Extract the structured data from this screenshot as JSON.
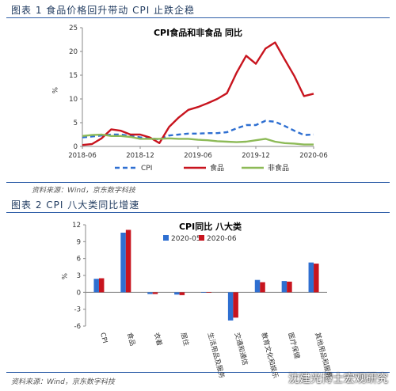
{
  "header": {
    "fig1_caption": "图表 1 食品价格回升带动 CPI 止跌企稳",
    "fig1_source": "资料来源：Wind，京东数字科技",
    "fig2_caption": "图表 2 CPI 八大类同比增速",
    "fig2_source": "资料来源：Wind，京东数字科技",
    "watermark": "沈建光博士宏观研究"
  },
  "colors": {
    "cpi": "#2e6fd1",
    "food": "#c8141e",
    "nonfood": "#8dba57",
    "s2020_05": "#2e6fd1",
    "s2020_06": "#c8141e",
    "rule": "#2f5fa8"
  },
  "chart_data": [
    {
      "type": "line",
      "title": "CPI食品和非食品 同比",
      "ylabel": "%",
      "ylim": [
        0,
        25
      ],
      "yticks": [
        0,
        5,
        10,
        15,
        20,
        25
      ],
      "xlim": [
        "2018-06",
        "2020-06"
      ],
      "xticks": [
        "2018-06",
        "2018-12",
        "2019-06",
        "2019-12",
        "2020-06"
      ],
      "x": [
        "2018-06",
        "2018-07",
        "2018-08",
        "2018-09",
        "2018-10",
        "2018-11",
        "2018-12",
        "2019-01",
        "2019-02",
        "2019-03",
        "2019-04",
        "2019-05",
        "2019-06",
        "2019-07",
        "2019-08",
        "2019-09",
        "2019-10",
        "2019-11",
        "2019-12",
        "2020-01",
        "2020-02",
        "2020-03",
        "2020-04",
        "2020-05",
        "2020-06"
      ],
      "legend_position": "bottom",
      "series": [
        {
          "name": "CPI",
          "style": "dashed",
          "values": [
            1.9,
            2.1,
            2.3,
            2.5,
            2.5,
            2.2,
            1.9,
            1.7,
            1.5,
            2.3,
            2.5,
            2.7,
            2.7,
            2.8,
            2.8,
            3.0,
            3.8,
            4.5,
            4.5,
            5.4,
            5.2,
            4.3,
            3.3,
            2.4,
            2.5
          ]
        },
        {
          "name": "食品",
          "style": "solid",
          "values": [
            0.3,
            0.5,
            1.7,
            3.6,
            3.3,
            2.5,
            2.5,
            1.9,
            0.7,
            4.1,
            6.1,
            7.7,
            8.3,
            9.1,
            10.0,
            11.2,
            15.5,
            19.1,
            17.4,
            20.6,
            21.9,
            18.3,
            14.8,
            10.6,
            11.1
          ]
        },
        {
          "name": "非食品",
          "style": "solid",
          "values": [
            2.2,
            2.4,
            2.5,
            2.2,
            2.2,
            2.0,
            1.6,
            1.6,
            1.6,
            1.7,
            1.6,
            1.6,
            1.4,
            1.3,
            1.1,
            1.0,
            0.9,
            1.0,
            1.3,
            1.6,
            1.0,
            0.7,
            0.6,
            0.4,
            0.4
          ]
        }
      ]
    },
    {
      "type": "bar",
      "title": "CPI同比 八大类",
      "ylabel": "%",
      "ylim": [
        -6,
        12
      ],
      "yticks": [
        -6,
        -3,
        0,
        3,
        6,
        9,
        12
      ],
      "categories": [
        "CPI",
        "食品",
        "衣着",
        "居住",
        "生活用品及服务",
        "交通和通信",
        "教育文化和娱乐",
        "医疗保健",
        "其他用品和服务"
      ],
      "legend_position": "top",
      "series": [
        {
          "name": "2020-05",
          "values": [
            2.4,
            10.6,
            -0.3,
            -0.4,
            0.0,
            -5.0,
            2.2,
            2.0,
            5.3
          ]
        },
        {
          "name": "2020-06",
          "values": [
            2.5,
            11.1,
            -0.3,
            -0.5,
            0.0,
            -4.5,
            1.8,
            1.9,
            5.1
          ]
        }
      ]
    }
  ]
}
